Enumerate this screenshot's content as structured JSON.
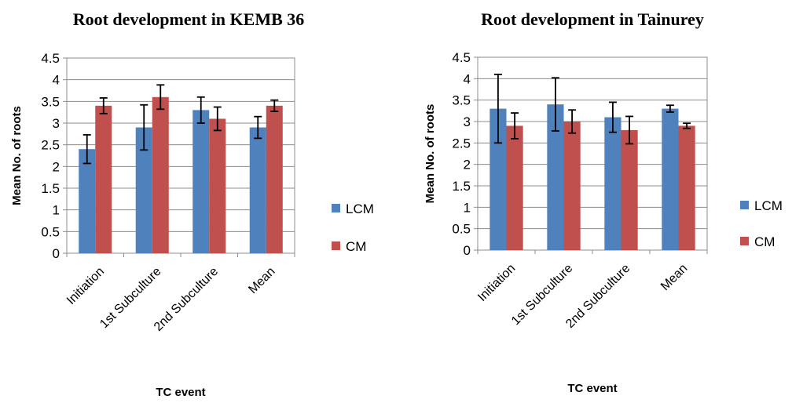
{
  "chart_data": [
    {
      "type": "bar",
      "title": "Root development in KEMB 36",
      "xlabel": "TC event",
      "ylabel": "Mean No. of roots",
      "ylim": [
        0,
        4.5
      ],
      "yticks": [
        "0",
        "0.5",
        "1",
        "1.5",
        "2",
        "2.5",
        "3",
        "3.5",
        "4",
        "4.5"
      ],
      "categories": [
        "Initiation",
        "1st Subculture",
        "2nd Subculture",
        "Mean"
      ],
      "series": [
        {
          "name": "LCM",
          "color": "#4F81BD",
          "values": [
            2.4,
            2.9,
            3.3,
            2.9
          ],
          "errors": [
            0.33,
            0.52,
            0.3,
            0.25
          ]
        },
        {
          "name": "CM",
          "color": "#C0504D",
          "values": [
            3.4,
            3.6,
            3.1,
            3.4
          ],
          "errors": [
            0.18,
            0.28,
            0.27,
            0.13
          ]
        }
      ],
      "grid": true,
      "legend": "right"
    },
    {
      "type": "bar",
      "title": "Root development in Tainurey",
      "xlabel": "TC event",
      "ylabel": "Mean No. of roots",
      "ylim": [
        0,
        4.5
      ],
      "yticks": [
        "0",
        "0.5",
        "1",
        "1.5",
        "2",
        "2.5",
        "3",
        "3.5",
        "4",
        "4.5"
      ],
      "categories": [
        "Initiation",
        "1st Subculture",
        "2nd Subculture",
        "Mean"
      ],
      "series": [
        {
          "name": "LCM",
          "color": "#4F81BD",
          "values": [
            3.3,
            3.4,
            3.1,
            3.3
          ],
          "errors": [
            0.8,
            0.62,
            0.35,
            0.08
          ]
        },
        {
          "name": "CM",
          "color": "#C0504D",
          "values": [
            2.9,
            3.0,
            2.8,
            2.9
          ],
          "errors": [
            0.3,
            0.27,
            0.32,
            0.06
          ]
        }
      ],
      "grid": true,
      "legend": "right"
    }
  ]
}
